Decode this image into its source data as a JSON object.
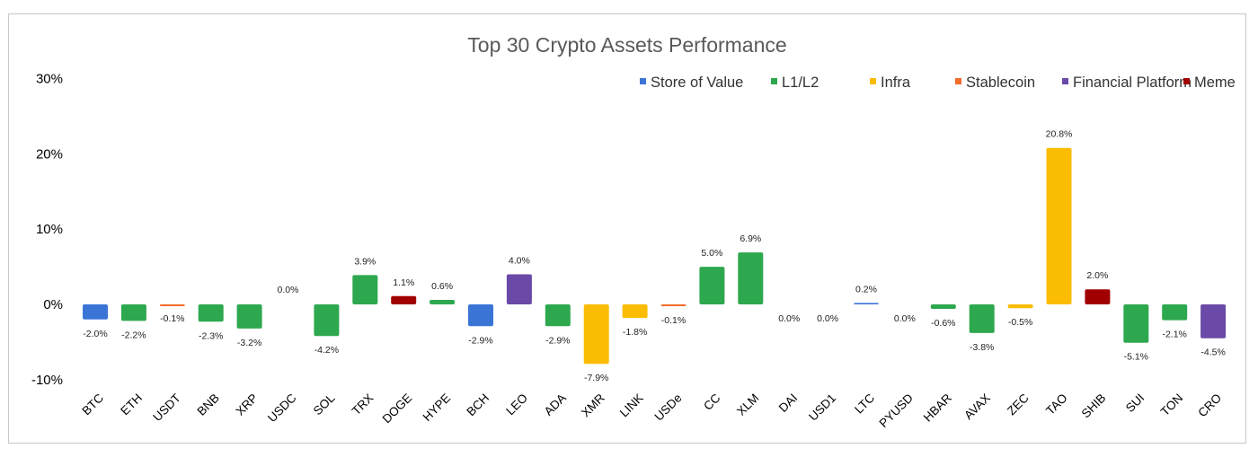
{
  "chart_data": {
    "type": "bar",
    "title": "Top 30 Crypto Assets Performance",
    "xlabel": "",
    "ylabel": "",
    "ylim": [
      -10,
      30
    ],
    "yticks": [
      30,
      20,
      10,
      0,
      -10
    ],
    "ytick_labels": [
      "30%",
      "20%",
      "10%",
      "0%",
      "-10%"
    ],
    "grid": false,
    "legend_position": "top-right",
    "legend": [
      {
        "name": "Store of Value",
        "color": "#3a75d6"
      },
      {
        "name": "L1/L2",
        "color": "#2ea84f"
      },
      {
        "name": "Infra",
        "color": "#fbbc04"
      },
      {
        "name": "Stablecoin",
        "color": "#f26b2a"
      },
      {
        "name": "Financial Platform",
        "color": "#6a4aa6"
      },
      {
        "name": "Meme",
        "color": "#a00000"
      }
    ],
    "categories": [
      "BTC",
      "ETH",
      "USDT",
      "BNB",
      "XRP",
      "USDC",
      "SOL",
      "TRX",
      "DOGE",
      "HYPE",
      "BCH",
      "LEO",
      "ADA",
      "XMR",
      "LINK",
      "USDe",
      "CC",
      "XLM",
      "DAI",
      "USD1",
      "LTC",
      "PYUSD",
      "HBAR",
      "AVAX",
      "ZEC",
      "TAO",
      "SHIB",
      "SUI",
      "TON",
      "CRO"
    ],
    "values": [
      -2.0,
      -2.2,
      -0.1,
      -2.3,
      -3.2,
      0.0,
      -4.2,
      3.9,
      1.1,
      0.6,
      -2.9,
      4.0,
      -2.9,
      -7.9,
      -1.8,
      -0.1,
      5.0,
      6.9,
      0.0,
      0.0,
      0.2,
      0.0,
      -0.6,
      -3.8,
      -0.5,
      20.8,
      2.0,
      -5.1,
      -2.1,
      -4.5
    ],
    "data_labels": [
      "-2.0%",
      "-2.2%",
      "-0.1%",
      "-2.3%",
      "-3.2%",
      "0.0%",
      "-4.2%",
      "3.9%",
      "1.1%",
      "0.6%",
      "-2.9%",
      "4.0%",
      "-2.9%",
      "-7.9%",
      "-1.8%",
      "-0.1%",
      "5.0%",
      "6.9%",
      "0.0%",
      "0.0%",
      "0.2%",
      "0.0%",
      "-0.6%",
      "-3.8%",
      "-0.5%",
      "20.8%",
      "2.0%",
      "-5.1%",
      "-2.1%",
      "-4.5%"
    ],
    "groups": [
      "Store of Value",
      "L1/L2",
      "Stablecoin",
      "L1/L2",
      "L1/L2",
      "Stablecoin",
      "L1/L2",
      "L1/L2",
      "Meme",
      "L1/L2",
      "Store of Value",
      "Financial Platform",
      "L1/L2",
      "Infra",
      "Infra",
      "Stablecoin",
      "L1/L2",
      "L1/L2",
      "Stablecoin",
      "Stablecoin",
      "Store of Value",
      "Stablecoin",
      "L1/L2",
      "L1/L2",
      "Infra",
      "Infra",
      "Meme",
      "L1/L2",
      "L1/L2",
      "Financial Platform"
    ]
  }
}
